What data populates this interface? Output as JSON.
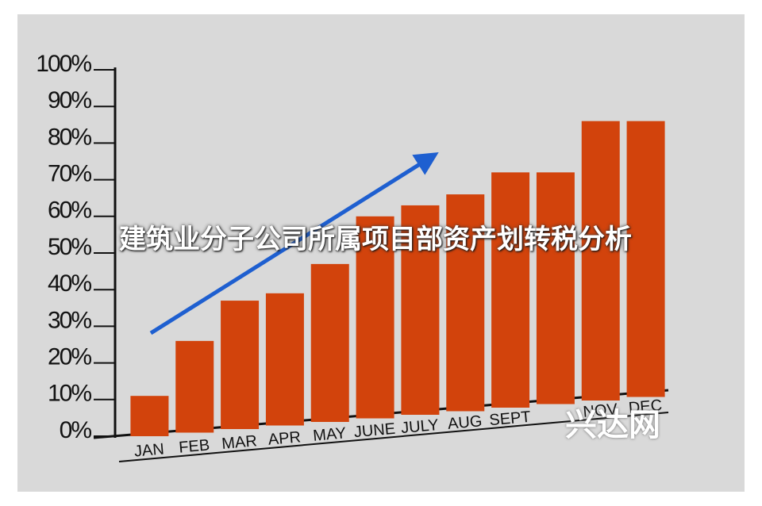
{
  "chart_data": {
    "type": "bar",
    "title": "建筑业分子公司所属项目部资产划转税分析",
    "watermark": "兴达网",
    "categories": [
      "JAN",
      "FEB",
      "MAR",
      "APR",
      "MAY",
      "JUNE",
      "JULY",
      "AUG",
      "SEPT",
      null,
      "NOV",
      "DEC"
    ],
    "values": [
      11,
      26,
      37,
      39,
      47,
      60,
      63,
      66,
      72,
      72,
      86,
      86
    ],
    "color": "#d2430c",
    "ylim": [
      0,
      100
    ],
    "yticks": [
      {
        "value": 0,
        "label": "0%"
      },
      {
        "value": 10,
        "label": "10%"
      },
      {
        "value": 20,
        "label": "20%"
      },
      {
        "value": 30,
        "label": "30%"
      },
      {
        "value": 40,
        "label": "40%"
      },
      {
        "value": 50,
        "label": "50%"
      },
      {
        "value": 60,
        "label": "60%"
      },
      {
        "value": 70,
        "label": "70%"
      },
      {
        "value": 80,
        "label": "80%"
      },
      {
        "value": 90,
        "label": "90%"
      },
      {
        "value": 100,
        "label": "100%"
      }
    ]
  }
}
